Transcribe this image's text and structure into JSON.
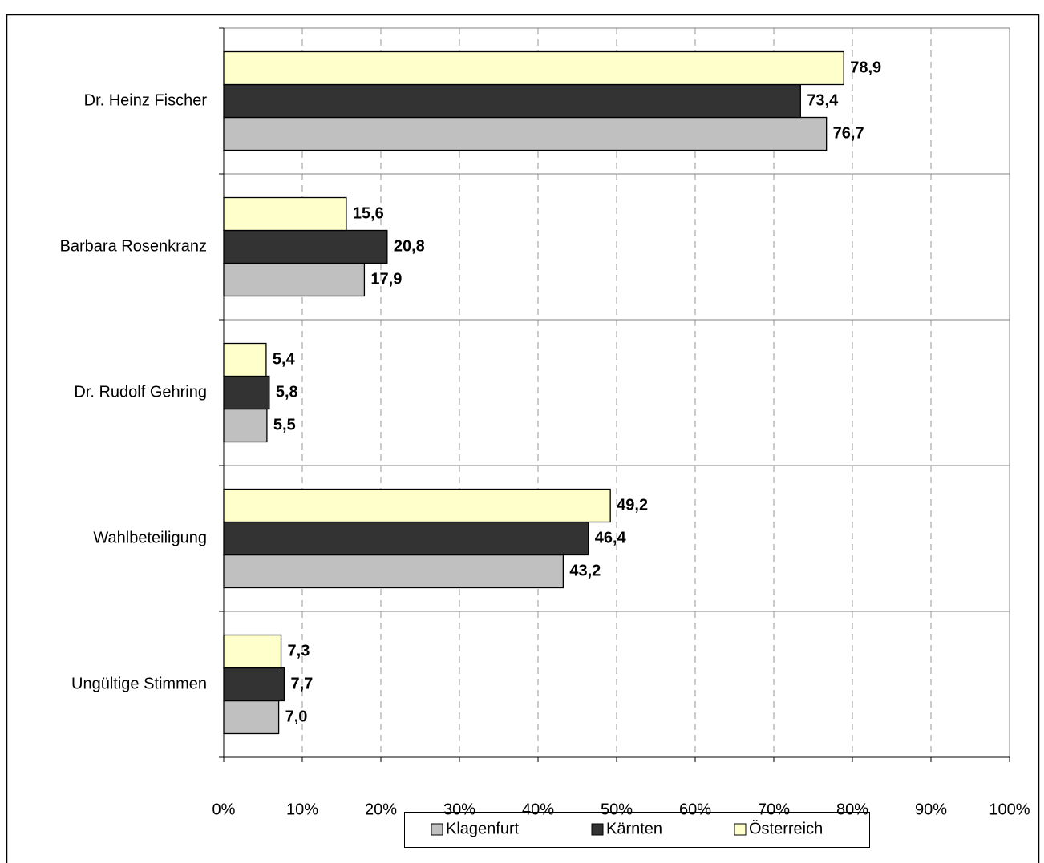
{
  "chart_data": {
    "type": "hbar",
    "categories": [
      "Dr. Heinz Fischer",
      "Barbara Rosenkranz",
      "Dr. Rudolf Gehring",
      "Wahlbeteiligung",
      "Ungültige Stimmen"
    ],
    "series": [
      {
        "name": "Klagenfurt",
        "color": "#c0c0c0",
        "values": [
          76.7,
          17.9,
          5.5,
          43.2,
          7.0
        ],
        "value_labels": [
          "76,7",
          "17,9",
          "5,5",
          "43,2",
          "7,0"
        ]
      },
      {
        "name": "Kärnten",
        "color": "#333333",
        "values": [
          73.4,
          20.8,
          5.8,
          46.4,
          7.7
        ],
        "value_labels": [
          "73,4",
          "20,8",
          "5,8",
          "46,4",
          "7,7"
        ]
      },
      {
        "name": "Österreich",
        "color": "#ffffcc",
        "values": [
          78.9,
          15.6,
          5.4,
          49.2,
          7.3
        ],
        "value_labels": [
          "78,9",
          "15,6",
          "5,4",
          "49,2",
          "7,3"
        ]
      }
    ],
    "xlim": [
      0,
      100
    ],
    "xticks": [
      {
        "value": 0,
        "label": "0%"
      },
      {
        "value": 10,
        "label": "10%"
      },
      {
        "value": 20,
        "label": "20%"
      },
      {
        "value": 30,
        "label": "30%"
      },
      {
        "value": 40,
        "label": "40%"
      },
      {
        "value": 50,
        "label": "50%"
      },
      {
        "value": 60,
        "label": "60%"
      },
      {
        "value": 70,
        "label": "70%"
      },
      {
        "value": 80,
        "label": "80%"
      },
      {
        "value": 90,
        "label": "90%"
      },
      {
        "value": 100,
        "label": "100%"
      }
    ],
    "grid": true,
    "legend": "bottom"
  }
}
